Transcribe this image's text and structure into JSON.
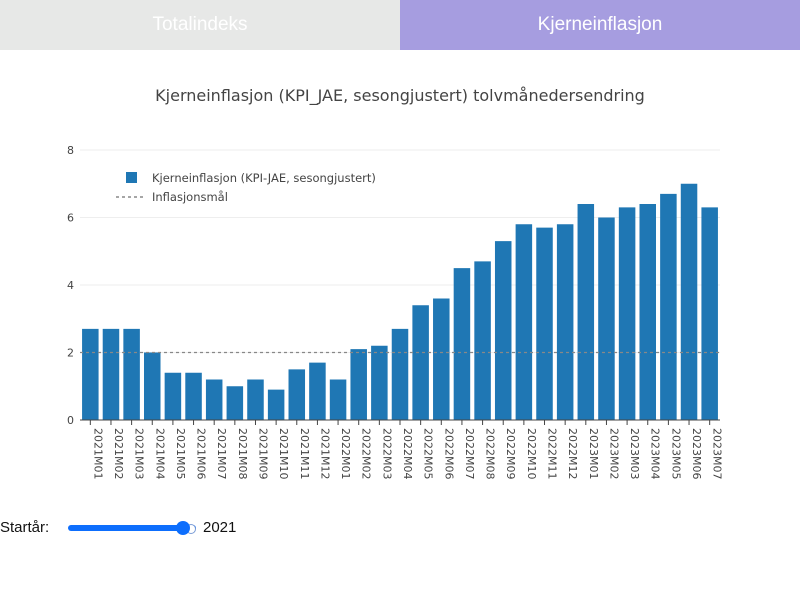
{
  "tabs": [
    {
      "label": "Totalindeks",
      "active": false,
      "color": "#e7e8e7"
    },
    {
      "label": "Kjerneinflasjon",
      "active": true,
      "color": "#a69de0"
    }
  ],
  "controls": {
    "start_label": "Startår:",
    "start_value": "2021"
  },
  "chart_data": {
    "type": "bar",
    "title": "Kjerneinflasjon (KPI_JAE, sesongjustert) tolvmånedersendring",
    "xlabel": "",
    "ylabel": "",
    "ylim": [
      0,
      8
    ],
    "yticks": [
      0,
      2,
      4,
      6,
      8
    ],
    "grid": true,
    "legend_position": "top-left",
    "bar_color": "#1f77b4",
    "target_line_color": "#888888",
    "categories": [
      "2021M01",
      "2021M02",
      "2021M03",
      "2021M04",
      "2021M05",
      "2021M06",
      "2021M07",
      "2021M08",
      "2021M09",
      "2021M10",
      "2021M11",
      "2021M12",
      "2022M01",
      "2022M02",
      "2022M03",
      "2022M04",
      "2022M05",
      "2022M06",
      "2022M07",
      "2022M08",
      "2022M09",
      "2022M10",
      "2022M11",
      "2022M12",
      "2023M01",
      "2023M02",
      "2023M03",
      "2023M04",
      "2023M05",
      "2023M06",
      "2023M07"
    ],
    "series": [
      {
        "name": "Kjerneinflasjon (KPI-JAE, sesongjustert)",
        "values": [
          2.7,
          2.7,
          2.7,
          2.0,
          1.4,
          1.4,
          1.2,
          1.0,
          1.2,
          0.9,
          1.5,
          1.7,
          1.2,
          2.1,
          2.2,
          2.7,
          3.4,
          3.6,
          4.5,
          4.7,
          5.3,
          5.8,
          5.7,
          5.8,
          6.4,
          6.0,
          6.3,
          6.4,
          6.7,
          7.0,
          6.3
        ]
      }
    ],
    "reference_line": {
      "name": "Inflasjonsmål",
      "value": 2
    }
  }
}
